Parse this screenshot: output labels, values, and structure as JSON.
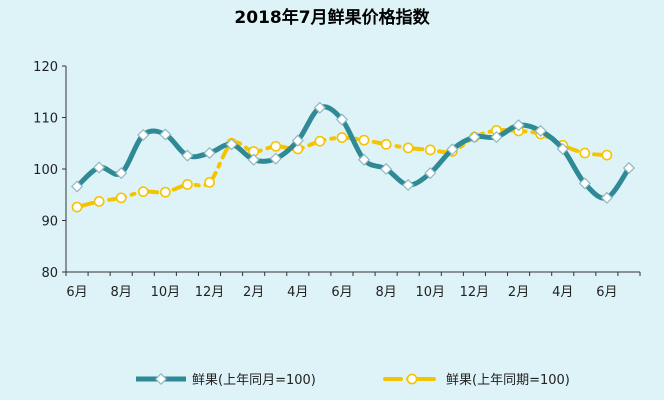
{
  "chart_data": {
    "type": "line",
    "title": "2018年7月鲜果价格指数",
    "xlabel": "",
    "ylabel": "",
    "ylim": [
      80,
      120
    ],
    "yticks": [
      80,
      90,
      100,
      110,
      120
    ],
    "grid": false,
    "legend_position": "bottom",
    "x_tick_labels": [
      "6月",
      "8月",
      "10月",
      "12月",
      "2月",
      "4月",
      "6月",
      "8月",
      "10月",
      "12月",
      "2月",
      "4月",
      "6月"
    ],
    "series": [
      {
        "name": "鲜果(上年同月=100)",
        "color": "#2f8a96",
        "style": "solid",
        "marker": "diamond",
        "values": [
          96.6,
          100.3,
          99.2,
          106.6,
          106.7,
          102.6,
          103.1,
          104.8,
          101.8,
          102.0,
          105.5,
          111.9,
          109.6,
          101.8,
          100.0,
          96.9,
          99.2,
          103.8,
          106.2,
          106.2,
          108.5,
          107.4,
          103.9,
          97.2,
          94.4,
          100.2
        ]
      },
      {
        "name": "鲜果(上年同期=100)",
        "color": "#f5c400",
        "style": "dash-dot",
        "marker": "circle",
        "values": [
          92.6,
          93.7,
          94.4,
          95.6,
          95.5,
          97.0,
          97.4,
          105.0,
          103.4,
          104.4,
          103.9,
          105.4,
          106.1,
          105.6,
          104.8,
          104.1,
          103.7,
          103.4,
          106.2,
          107.5,
          107.4,
          106.8,
          104.6,
          103.1,
          102.7
        ]
      }
    ]
  }
}
